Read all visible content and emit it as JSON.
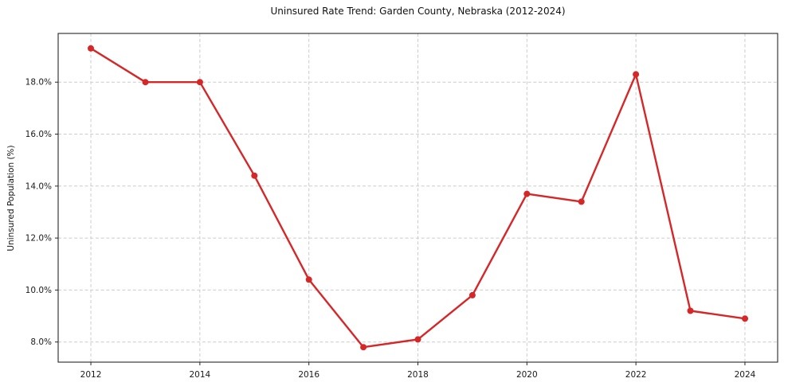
{
  "colors": {
    "line": "#d62728",
    "grid": "#cccccc",
    "spine": "#262626",
    "text": "#1a1a1a",
    "background": "#ffffff"
  },
  "chart_data": {
    "type": "line",
    "title": "Uninsured Rate Trend: Garden County, Nebraska (2012-2024)",
    "xlabel": "",
    "ylabel": "Uninsured Population (%)",
    "x": [
      2012,
      2013,
      2014,
      2015,
      2016,
      2017,
      2018,
      2019,
      2020,
      2021,
      2022,
      2023,
      2024
    ],
    "values": [
      19.3,
      18.0,
      18.0,
      14.4,
      10.4,
      7.8,
      8.1,
      9.8,
      13.7,
      13.4,
      18.3,
      9.2,
      8.9
    ],
    "xlim": [
      2011.4,
      2024.6
    ],
    "ylim": [
      7.225,
      19.875
    ],
    "xticks": [
      2012,
      2014,
      2016,
      2018,
      2020,
      2022,
      2024
    ],
    "xtick_labels": [
      "2012",
      "2014",
      "2016",
      "2018",
      "2020",
      "2022",
      "2024"
    ],
    "yticks": [
      8,
      10,
      12,
      14,
      16,
      18
    ],
    "ytick_labels": [
      "8.0%",
      "10.0%",
      "12.0%",
      "14.0%",
      "16.0%",
      "18.0%"
    ],
    "grid": {
      "visible": true,
      "style": "dashed",
      "axes": "both"
    },
    "legend": {
      "visible": false
    },
    "marker": "circle",
    "line_color": "#d62728"
  }
}
